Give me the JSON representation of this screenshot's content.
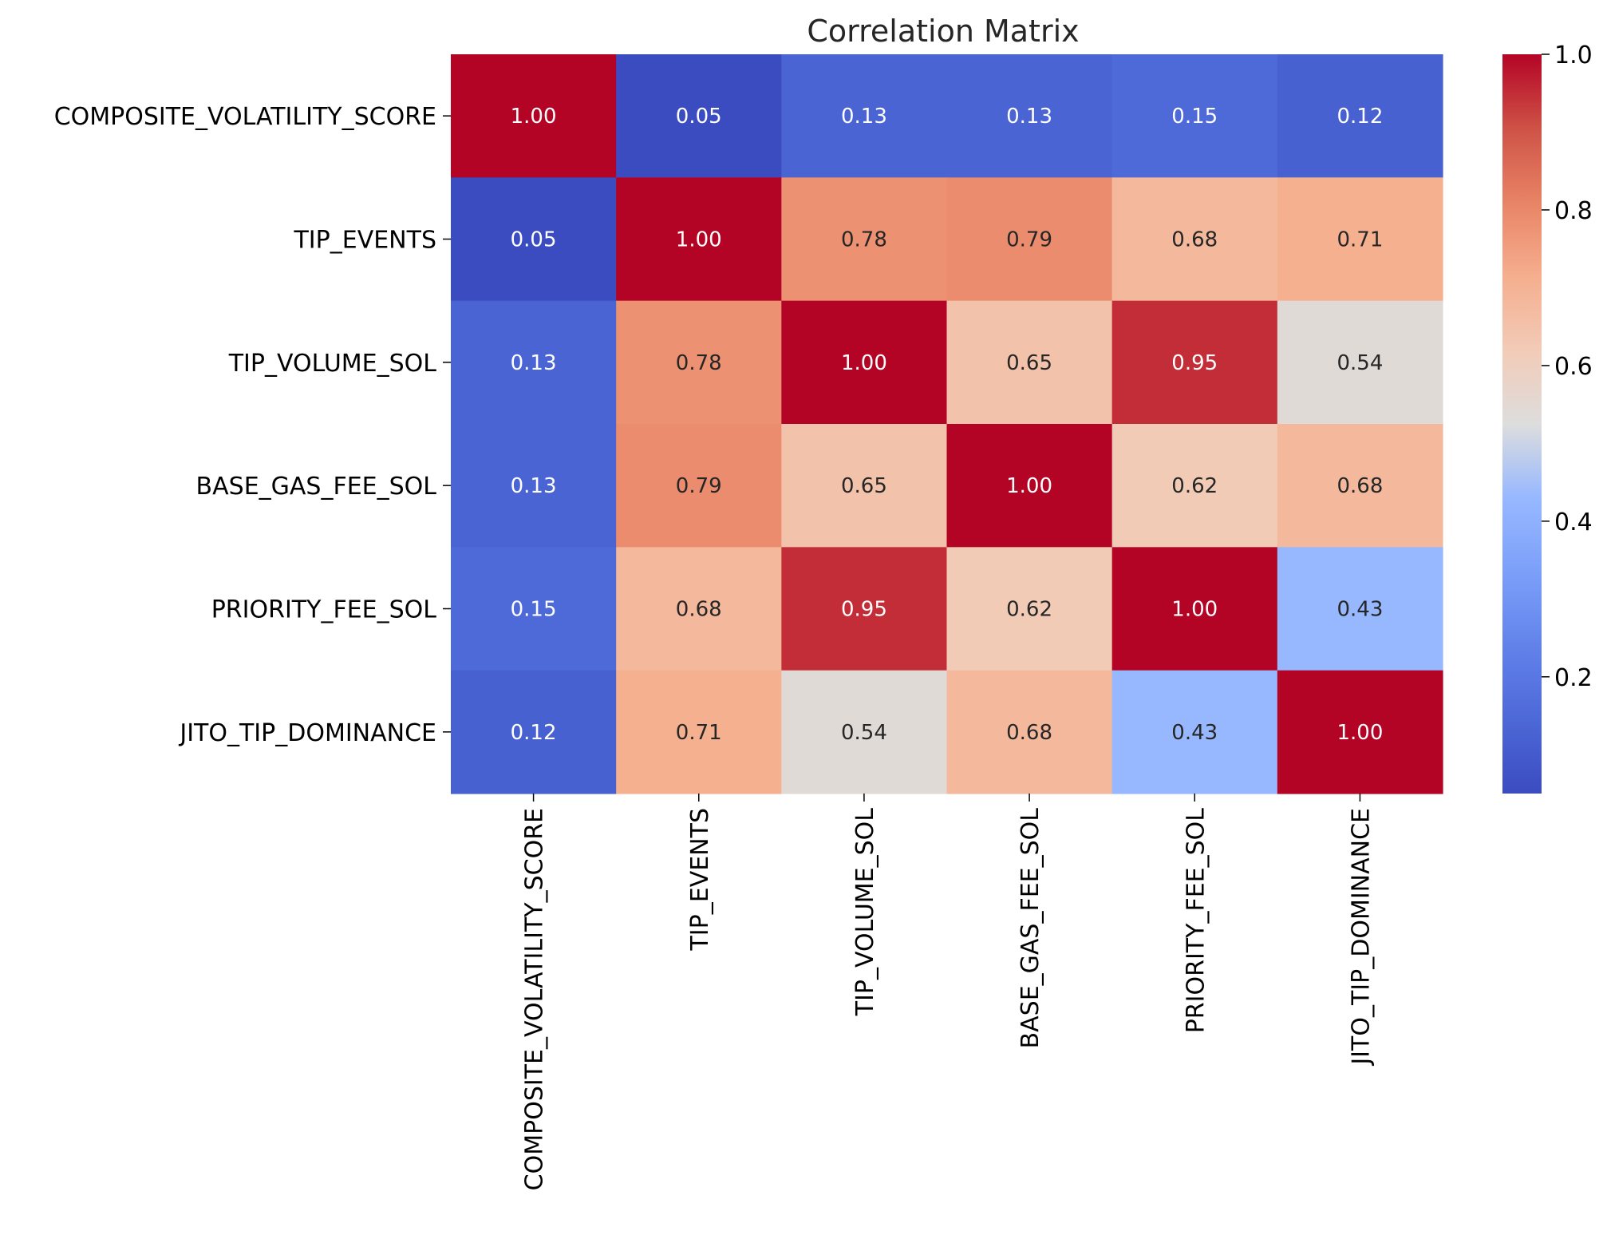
{
  "chart_data": {
    "type": "heatmap",
    "title": "Correlation Matrix",
    "rows": [
      "COMPOSITE_VOLATILITY_SCORE",
      "TIP_EVENTS",
      "TIP_VOLUME_SOL",
      "BASE_GAS_FEE_SOL",
      "PRIORITY_FEE_SOL",
      "JITO_TIP_DOMINANCE"
    ],
    "columns": [
      "COMPOSITE_VOLATILITY_SCORE",
      "TIP_EVENTS",
      "TIP_VOLUME_SOL",
      "BASE_GAS_FEE_SOL",
      "PRIORITY_FEE_SOL",
      "JITO_TIP_DOMINANCE"
    ],
    "values": [
      [
        1.0,
        0.05,
        0.13,
        0.13,
        0.15,
        0.12
      ],
      [
        0.05,
        1.0,
        0.78,
        0.79,
        0.68,
        0.71
      ],
      [
        0.13,
        0.78,
        1.0,
        0.65,
        0.95,
        0.54
      ],
      [
        0.13,
        0.79,
        0.65,
        1.0,
        0.62,
        0.68
      ],
      [
        0.15,
        0.68,
        0.95,
        0.62,
        1.0,
        0.43
      ],
      [
        0.12,
        0.71,
        0.54,
        0.68,
        0.43,
        1.0
      ]
    ],
    "cell_labels": [
      [
        "1.00",
        "0.05",
        "0.13",
        "0.13",
        "0.15",
        "0.12"
      ],
      [
        "0.05",
        "1.00",
        "0.78",
        "0.79",
        "0.68",
        "0.71"
      ],
      [
        "0.13",
        "0.78",
        "1.00",
        "0.65",
        "0.95",
        "0.54"
      ],
      [
        "0.13",
        "0.79",
        "0.65",
        "1.00",
        "0.62",
        "0.68"
      ],
      [
        "0.15",
        "0.68",
        "0.95",
        "0.62",
        "1.00",
        "0.43"
      ],
      [
        "0.12",
        "0.71",
        "0.54",
        "0.68",
        "0.43",
        "1.00"
      ]
    ],
    "colormap": "coolwarm",
    "colorbar": {
      "range": [
        0.05,
        1.0
      ],
      "ticks": [
        0.2,
        0.4,
        0.6,
        0.8,
        1.0
      ],
      "tick_labels": [
        "0.2",
        "0.4",
        "0.6",
        "0.8",
        "1.0"
      ],
      "placement": "right"
    },
    "text_colors": {
      "dark": "#262626",
      "light": "#ffffff"
    }
  }
}
